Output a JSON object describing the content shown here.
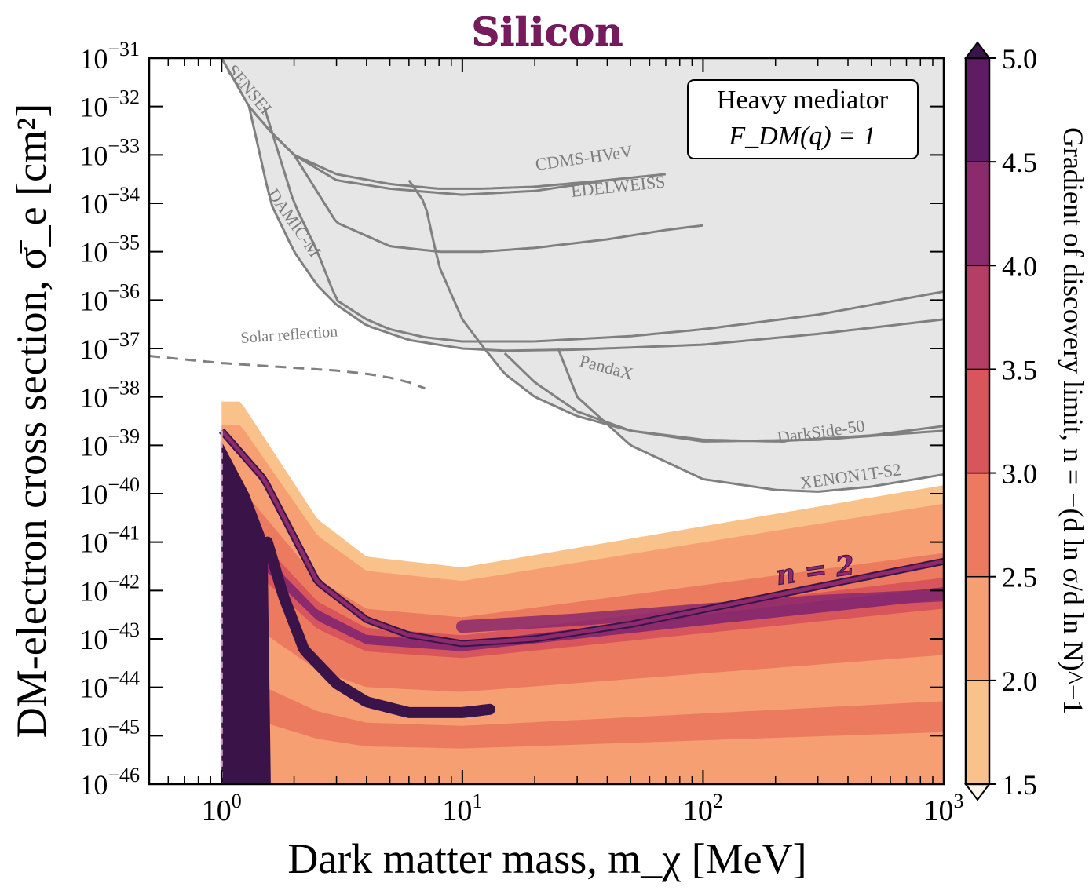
{
  "chart_data": {
    "type": "heatmap",
    "title": "Silicon",
    "xlabel": "Dark matter mass, m_χ [MeV]",
    "ylabel": "DM-electron cross section, σ̄_e [cm²]",
    "xscale": "log",
    "yscale": "log",
    "xlim": [
      0.5,
      1000
    ],
    "ylim": [
      1e-46,
      1e-31
    ],
    "x_tick_labels": [
      "10^0",
      "10^1",
      "10^2",
      "10^3"
    ],
    "y_tick_labels": [
      "10^−31",
      "10^−32",
      "10^−33",
      "10^−34",
      "10^−35",
      "10^−36",
      "10^−37",
      "10^−38",
      "10^−39",
      "10^−40",
      "10^−41",
      "10^−42",
      "10^−43",
      "10^−44",
      "10^−45",
      "10^−46"
    ],
    "annotation": {
      "line1": "Heavy mediator",
      "line2": "F_DM(q) = 1",
      "placement": "top-right"
    },
    "colorbar": {
      "label": "Gradient of discovery limit, n = −(d ln σ/d ln N)^−1",
      "min": 1.5,
      "max": 5.0,
      "levels": [
        1.5,
        2.0,
        2.5,
        3.0,
        3.5,
        4.0,
        4.5,
        5.0
      ],
      "tick_labels": [
        "1.5",
        "2.0",
        "2.5",
        "3.0",
        "3.5",
        "4.0",
        "4.5",
        "5.0"
      ],
      "colors": [
        "#f9c28a",
        "#f59f72",
        "#ec7a5f",
        "#d9555c",
        "#b53e66",
        "#8b2a6c",
        "#5f1c62",
        "#3a1448"
      ]
    },
    "contour_label": "n = 2",
    "contour_n2": {
      "x": [
        1.0,
        1.5,
        2.5,
        4,
        6,
        10,
        20,
        50,
        100,
        300,
        1000
      ],
      "y": [
        2e-39,
        2e-40,
        1.5e-42,
        2.5e-43,
        1.2e-43,
        8e-44,
        1e-43,
        2e-43,
        4e-43,
        1.2e-42,
        4e-42
      ]
    },
    "band_edges": {
      "x_start": 1.0,
      "upper": {
        "x": [
          1.0,
          1.2,
          2.5,
          4,
          10,
          1000
        ],
        "y": [
          8e-39,
          8e-39,
          3e-41,
          5e-42,
          3e-42,
          1.5e-40
        ]
      },
      "lower": {
        "y": 1e-46
      }
    },
    "exclusions": [
      {
        "name": "SENSEI",
        "label_angle": 50
      },
      {
        "name": "CDMS-HVeV"
      },
      {
        "name": "EDELWEISS"
      },
      {
        "name": "DAMIC-M",
        "label_angle": 55
      },
      {
        "name": "Solar reflection",
        "style": "dashed"
      },
      {
        "name": "PandaX"
      },
      {
        "name": "DarkSide-50"
      },
      {
        "name": "XENON1T-S2"
      }
    ],
    "exclusion_curves": {
      "SENSEI": {
        "x": [
          0.5,
          1.0,
          1.3,
          1.6,
          2.0,
          3.0,
          5.0,
          10,
          20,
          40
        ],
        "y": [
          1e-30,
          1e-31,
          1e-32,
          3e-33,
          1e-33,
          3e-34,
          2e-34,
          1.5e-34,
          1.8e-34,
          3e-34
        ]
      },
      "CDMS-HVeV": {
        "x": [
          1.6,
          2,
          3,
          5,
          8,
          12,
          20,
          40,
          70
        ],
        "y": [
          3e-33,
          1e-33,
          4e-34,
          2.5e-34,
          2e-34,
          2e-34,
          2.2e-34,
          3e-34,
          4e-34
        ]
      },
      "EDELWEISS": {
        "x": [
          2,
          3,
          5,
          8,
          12,
          20,
          40,
          70,
          100
        ],
        "y": [
          1e-33,
          4e-35,
          1.3e-35,
          1e-35,
          1e-35,
          1.2e-35,
          1.8e-35,
          2.8e-35,
          3.5e-35
        ]
      },
      "DAMIC-M": {
        "x": [
          1.5,
          2,
          2.5,
          3,
          4,
          5,
          7,
          10,
          20,
          50,
          100,
          300,
          1000
        ],
        "y": [
          1e-32,
          1e-34,
          1e-35,
          1e-36,
          4e-37,
          2.5e-37,
          1.7e-37,
          1.4e-37,
          1.4e-37,
          1.8e-37,
          2.5e-37,
          5e-37,
          1.5e-36
        ]
      },
      "DAMIC-M-b": {
        "x": [
          1.3,
          1.6,
          2,
          2.5,
          3,
          4,
          6,
          10,
          15,
          30,
          100,
          300,
          1000
        ],
        "y": [
          1e-32,
          1e-34,
          1e-35,
          2e-36,
          8e-37,
          3e-37,
          1.5e-37,
          1e-37,
          9e-38,
          9.5e-38,
          1.2e-37,
          2e-37,
          4e-37
        ]
      },
      "Solar reflection": {
        "x": [
          0.5,
          1,
          2,
          3,
          4,
          5,
          6,
          7
        ],
        "y": [
          7e-38,
          5e-38,
          4e-38,
          3.5e-38,
          3e-38,
          2.5e-38,
          2e-38,
          1.5e-38
        ]
      },
      "PandaX": {
        "x": [
          6,
          7,
          8,
          10,
          12,
          15,
          20,
          30,
          50,
          100,
          300,
          1000
        ],
        "y": [
          3e-34,
          1e-34,
          5e-36,
          4e-37,
          1.2e-37,
          3e-38,
          1e-38,
          4e-39,
          2e-39,
          1.2e-39,
          1.3e-39,
          2e-39
        ]
      },
      "DarkSide-50": {
        "x": [
          15,
          20,
          30,
          50,
          100,
          200,
          500,
          1000
        ],
        "y": [
          8e-38,
          2e-38,
          5e-39,
          2e-39,
          1.3e-39,
          1.2e-39,
          1.6e-39,
          2.5e-39
        ]
      },
      "XENON1T-S2": {
        "x": [
          25,
          30,
          50,
          100,
          200,
          300,
          500,
          1000
        ],
        "y": [
          1e-37,
          1e-38,
          1e-39,
          2e-40,
          1.2e-40,
          1.1e-40,
          1.4e-40,
          2.5e-40
        ]
      }
    }
  }
}
